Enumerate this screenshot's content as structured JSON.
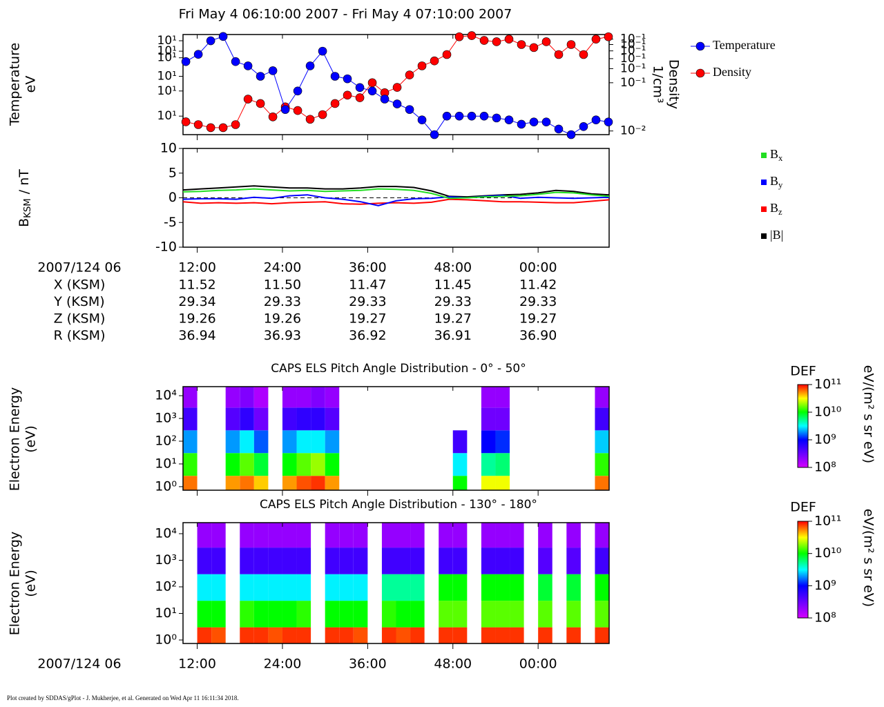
{
  "title": "Fri May 4 06:10:00 2007 - Fri May 4 07:10:00 2007",
  "footer": "Plot created by SDDAS/gPlot - J. Mukherjee, et al.  Generated on Wed Apr 11 16:11:34 2018.",
  "ephemeris": {
    "header": "2007/124 06",
    "rows": [
      {
        "label": "X (KSM)",
        "values": [
          "11.52",
          "11.50",
          "11.47",
          "11.45",
          "11.42"
        ]
      },
      {
        "label": "Y (KSM)",
        "values": [
          "29.34",
          "29.33",
          "29.33",
          "29.33",
          "29.33"
        ]
      },
      {
        "label": "Z (KSM)",
        "values": [
          "19.26",
          "19.26",
          "19.27",
          "19.27",
          "19.27"
        ]
      },
      {
        "label": "R (KSM)",
        "values": [
          "36.94",
          "36.93",
          "36.92",
          "36.91",
          "36.90"
        ]
      }
    ]
  },
  "chart_data": [
    {
      "type": "line",
      "markers": true,
      "ylabel": [
        "Temperature",
        "eV"
      ],
      "y2label": [
        "Density",
        "1/cm³"
      ],
      "xlim": [
        10,
        70
      ],
      "log_y": true,
      "log_y2": true,
      "ylim": [
        6,
        95
      ],
      "yticks": [
        {
          "value": 10,
          "label": "10¹"
        },
        {
          "value": 20,
          "label": "10¹"
        },
        {
          "value": 30,
          "label": "10¹"
        },
        {
          "value": 50,
          "label": "10¹"
        },
        {
          "value": 60,
          "label": "10¹"
        },
        {
          "value": 80,
          "label": "10¹"
        }
      ],
      "y2lim": [
        0.009,
        0.16
      ],
      "y2ticks": [
        {
          "value": 0.01,
          "label": "10⁻²"
        },
        {
          "value": 0.04,
          "label": "10⁻¹"
        },
        {
          "value": 0.06,
          "label": "10⁻¹"
        },
        {
          "value": 0.08,
          "label": "10⁻¹"
        },
        {
          "value": 0.1,
          "label": "10⁻¹"
        },
        {
          "value": 0.12,
          "label": "10⁻¹"
        },
        {
          "value": 0.14,
          "label": "10⁻¹"
        }
      ],
      "x": [
        10.4,
        12.15,
        13.9,
        15.65,
        17.4,
        19.15,
        20.9,
        22.65,
        24.4,
        26.15,
        27.9,
        29.65,
        31.4,
        33.15,
        34.9,
        36.65,
        38.4,
        40.15,
        41.9,
        43.65,
        45.4,
        47.15,
        48.9,
        50.65,
        52.4,
        54.15,
        55.9,
        57.65,
        59.4,
        61.15,
        62.9,
        64.65,
        66.4,
        68.15,
        69.9
      ],
      "series": [
        {
          "name": "Temperature",
          "color": "#0000ff",
          "values": [
            45,
            55,
            80,
            90,
            45,
            40,
            30,
            35,
            12,
            20,
            40,
            60,
            30,
            28,
            22,
            20,
            16,
            14,
            12,
            9,
            6,
            10,
            10,
            10,
            10,
            9.5,
            9,
            8,
            8.5,
            8.5,
            7,
            6,
            7.5,
            9,
            8.5
          ]
        },
        {
          "name": "Density",
          "color": "#ff0000",
          "axis": "y2",
          "values": [
            0.013,
            0.012,
            0.011,
            0.011,
            0.012,
            0.025,
            0.022,
            0.015,
            0.02,
            0.018,
            0.014,
            0.016,
            0.022,
            0.028,
            0.026,
            0.04,
            0.03,
            0.035,
            0.05,
            0.065,
            0.075,
            0.09,
            0.15,
            0.155,
            0.135,
            0.13,
            0.14,
            0.12,
            0.11,
            0.13,
            0.09,
            0.12,
            0.09,
            0.14,
            0.15
          ]
        }
      ]
    },
    {
      "type": "line",
      "ylabel": "BKSM / nT",
      "xlim": [
        10,
        70
      ],
      "ylim": [
        -10,
        10
      ],
      "yticks": [
        -10,
        -5,
        0,
        5,
        10
      ],
      "xticks": [
        {
          "value": 12,
          "label": "12:00"
        },
        {
          "value": 24,
          "label": "24:00"
        },
        {
          "value": 36,
          "label": "36:00"
        },
        {
          "value": 48,
          "label": "48:00"
        },
        {
          "value": 60,
          "label": "00:00"
        }
      ],
      "x": [
        10,
        12.5,
        15,
        17.5,
        20,
        22.5,
        25,
        27.5,
        30,
        32.5,
        35,
        37.5,
        40,
        42.5,
        45,
        47.5,
        50,
        52.5,
        55,
        57.5,
        60,
        62.5,
        65,
        67.5,
        70
      ],
      "series": [
        {
          "name": "Bx",
          "color": "#22dd22",
          "values": [
            1.2,
            1.3,
            1.5,
            1.6,
            1.8,
            1.6,
            1.4,
            1.5,
            1.3,
            1.4,
            1.5,
            1.8,
            1.7,
            1.5,
            0.9,
            -0.1,
            0.0,
            0.2,
            0.3,
            0.4,
            0.7,
            1.1,
            1.0,
            0.6,
            0.3
          ]
        },
        {
          "name": "By",
          "color": "#0000ff",
          "values": [
            -0.3,
            -0.2,
            -0.2,
            -0.3,
            0.1,
            -0.1,
            0.4,
            0.6,
            0.0,
            -0.3,
            -0.8,
            -1.6,
            -0.6,
            -0.2,
            -0.1,
            0.2,
            0.0,
            0.3,
            0.5,
            -0.1,
            0.1,
            0.0,
            -0.1,
            0.0,
            0.1
          ]
        },
        {
          "name": "Bz",
          "color": "#ff0000",
          "values": [
            -0.8,
            -1.1,
            -1.0,
            -1.1,
            -1.0,
            -1.2,
            -1.0,
            -0.9,
            -0.8,
            -1.2,
            -1.3,
            -1.1,
            -1.0,
            -1.1,
            -0.9,
            -0.3,
            -0.4,
            -0.6,
            -0.8,
            -0.8,
            -0.9,
            -1.0,
            -1.0,
            -0.7,
            -0.4
          ]
        },
        {
          "name": "|B|",
          "color": "#000000",
          "values": [
            1.6,
            1.8,
            2.0,
            2.2,
            2.4,
            2.2,
            2.0,
            2.0,
            1.8,
            1.8,
            2.0,
            2.3,
            2.3,
            2.1,
            1.4,
            0.3,
            0.2,
            0.4,
            0.6,
            0.7,
            1.0,
            1.5,
            1.3,
            0.8,
            0.6
          ]
        }
      ]
    },
    {
      "type": "heatmap",
      "title": "CAPS ELS Pitch Angle Distribution - 0° - 50°",
      "ylabel": [
        "Electron Energy",
        "(eV)"
      ],
      "xlim": [
        10,
        70
      ],
      "log_y": true,
      "ylim": [
        0.7,
        25000
      ],
      "yticks": [
        {
          "value": 1,
          "label": "10⁰"
        },
        {
          "value": 10,
          "label": "10¹"
        },
        {
          "value": 100,
          "label": "10²"
        },
        {
          "value": 1000,
          "label": "10³"
        },
        {
          "value": 10000,
          "label": "10⁴"
        }
      ],
      "x_bins": [
        10,
        12,
        14,
        16,
        18,
        20,
        22,
        24,
        26,
        28,
        30,
        32,
        34,
        36,
        38,
        40,
        42,
        44,
        46,
        48,
        50,
        52,
        54,
        56,
        58,
        60,
        62,
        64,
        66,
        68,
        70
      ],
      "y_bins": [
        0.7,
        3,
        30,
        300,
        3000,
        25000
      ],
      "z": [
        [
          60000000000.0,
          null,
          null,
          50000000000.0,
          60000000000.0,
          40000000000.0,
          null,
          50000000000.0,
          70000000000.0,
          80000000000.0,
          50000000000.0,
          null,
          null,
          null,
          null,
          null,
          null,
          null,
          null,
          10000000000.0,
          null,
          30000000000.0,
          30000000000.0,
          null,
          null,
          null,
          null,
          null,
          null,
          60000000000.0
        ],
        [
          12000000000.0,
          null,
          null,
          10000000000.0,
          15000000000.0,
          8000000000.0,
          null,
          10000000000.0,
          15000000000.0,
          20000000000.0,
          10000000000.0,
          null,
          null,
          null,
          null,
          null,
          null,
          null,
          null,
          3000000000.0,
          null,
          5000000000.0,
          6000000000.0,
          null,
          null,
          null,
          null,
          null,
          null,
          12000000000.0
        ],
        [
          2000000000.0,
          null,
          null,
          2000000000.0,
          3000000000.0,
          1500000000.0,
          null,
          2000000000.0,
          3000000000.0,
          3000000000.0,
          2000000000.0,
          null,
          null,
          null,
          null,
          null,
          null,
          null,
          null,
          500000000.0,
          null,
          1000000000.0,
          1200000000.0,
          null,
          null,
          null,
          null,
          null,
          null,
          2500000000.0
        ],
        [
          500000000.0,
          null,
          null,
          400000000.0,
          600000000.0,
          300000000.0,
          null,
          500000000.0,
          600000000.0,
          600000000.0,
          400000000.0,
          null,
          null,
          null,
          null,
          null,
          null,
          null,
          null,
          null,
          null,
          300000000.0,
          300000000.0,
          null,
          null,
          null,
          null,
          null,
          null,
          500000000.0
        ],
        [
          200000000.0,
          null,
          null,
          200000000.0,
          250000000.0,
          150000000.0,
          null,
          200000000.0,
          200000000.0,
          250000000.0,
          200000000.0,
          null,
          null,
          null,
          null,
          null,
          null,
          null,
          null,
          null,
          null,
          200000000.0,
          200000000.0,
          null,
          null,
          null,
          null,
          null,
          null,
          200000000.0
        ]
      ],
      "colorbar": {
        "label": "DEF",
        "units": "eV/(m² s sr eV)",
        "lim": [
          100000000.0,
          100000000000.0
        ],
        "ticks": [
          {
            "value": 100000000.0,
            "label": "10⁸"
          },
          {
            "value": 1000000000.0,
            "label": "10⁹"
          },
          {
            "value": 10000000000.0,
            "label": "10¹⁰"
          },
          {
            "value": 100000000000.0,
            "label": "10¹¹"
          }
        ]
      }
    },
    {
      "type": "heatmap",
      "title": "CAPS ELS Pitch Angle Distribution - 130° - 180°",
      "ylabel": [
        "Electron Energy",
        "(eV)"
      ],
      "xlabel": "2007/124 06",
      "xlim": [
        10,
        70
      ],
      "log_y": true,
      "ylim": [
        0.74,
        26000
      ],
      "yticks": [
        {
          "value": 1,
          "label": "10⁰"
        },
        {
          "value": 10,
          "label": "10¹"
        },
        {
          "value": 100,
          "label": "10²"
        },
        {
          "value": 1000,
          "label": "10³"
        },
        {
          "value": 10000,
          "label": "10⁴"
        }
      ],
      "xticks": [
        {
          "value": 12,
          "label": "12:00"
        },
        {
          "value": 24,
          "label": "24:00"
        },
        {
          "value": 36,
          "label": "36:00"
        },
        {
          "value": 48,
          "label": "48:00"
        },
        {
          "value": 60,
          "label": "00:00"
        }
      ],
      "x_bins": [
        10,
        12,
        14,
        16,
        18,
        20,
        22,
        24,
        26,
        28,
        30,
        32,
        34,
        36,
        38,
        40,
        42,
        44,
        46,
        48,
        50,
        52,
        54,
        56,
        58,
        60,
        62,
        64,
        66,
        68,
        70
      ],
      "y_bins": [
        0.74,
        3,
        30,
        300,
        3000,
        26000
      ],
      "z": [
        [
          null,
          80000000000.0,
          70000000000.0,
          null,
          80000000000.0,
          80000000000.0,
          70000000000.0,
          80000000000.0,
          80000000000.0,
          null,
          80000000000.0,
          80000000000.0,
          70000000000.0,
          null,
          80000000000.0,
          70000000000.0,
          80000000000.0,
          null,
          80000000000.0,
          80000000000.0,
          null,
          80000000000.0,
          80000000000.0,
          80000000000.0,
          null,
          80000000000.0,
          null,
          80000000000.0,
          null,
          80000000000.0
        ],
        [
          null,
          10000000000.0,
          10000000000.0,
          null,
          12000000000.0,
          10000000000.0,
          10000000000.0,
          10000000000.0,
          12000000000.0,
          null,
          10000000000.0,
          10000000000.0,
          10000000000.0,
          null,
          12000000000.0,
          10000000000.0,
          10000000000.0,
          null,
          15000000000.0,
          15000000000.0,
          null,
          15000000000.0,
          15000000000.0,
          15000000000.0,
          null,
          15000000000.0,
          null,
          15000000000.0,
          null,
          15000000000.0
        ],
        [
          null,
          3000000000.0,
          3000000000.0,
          null,
          3000000000.0,
          3000000000.0,
          3000000000.0,
          3000000000.0,
          3000000000.0,
          null,
          3000000000.0,
          3000000000.0,
          3000000000.0,
          null,
          5000000000.0,
          5000000000.0,
          5000000000.0,
          null,
          10000000000.0,
          10000000000.0,
          null,
          10000000000.0,
          10000000000.0,
          10000000000.0,
          null,
          8000000000.0,
          null,
          8000000000.0,
          null,
          10000000000.0
        ],
        [
          null,
          500000000.0,
          500000000.0,
          null,
          500000000.0,
          500000000.0,
          500000000.0,
          500000000.0,
          500000000.0,
          null,
          500000000.0,
          500000000.0,
          500000000.0,
          null,
          500000000.0,
          500000000.0,
          500000000.0,
          null,
          500000000.0,
          500000000.0,
          null,
          500000000.0,
          500000000.0,
          500000000.0,
          null,
          400000000.0,
          null,
          400000000.0,
          null,
          500000000.0
        ],
        [
          null,
          200000000.0,
          200000000.0,
          null,
          200000000.0,
          200000000.0,
          200000000.0,
          200000000.0,
          200000000.0,
          null,
          200000000.0,
          200000000.0,
          200000000.0,
          null,
          200000000.0,
          200000000.0,
          200000000.0,
          null,
          200000000.0,
          200000000.0,
          null,
          200000000.0,
          200000000.0,
          200000000.0,
          null,
          200000000.0,
          null,
          200000000.0,
          null,
          200000000.0
        ]
      ],
      "colorbar": {
        "label": "DEF",
        "units": "eV/(m² s sr eV)",
        "lim": [
          100000000.0,
          100000000000.0
        ],
        "ticks": [
          {
            "value": 100000000.0,
            "label": "10⁸"
          },
          {
            "value": 1000000000.0,
            "label": "10⁹"
          },
          {
            "value": 10000000000.0,
            "label": "10¹⁰"
          },
          {
            "value": 100000000000.0,
            "label": "10¹¹"
          }
        ]
      }
    }
  ]
}
